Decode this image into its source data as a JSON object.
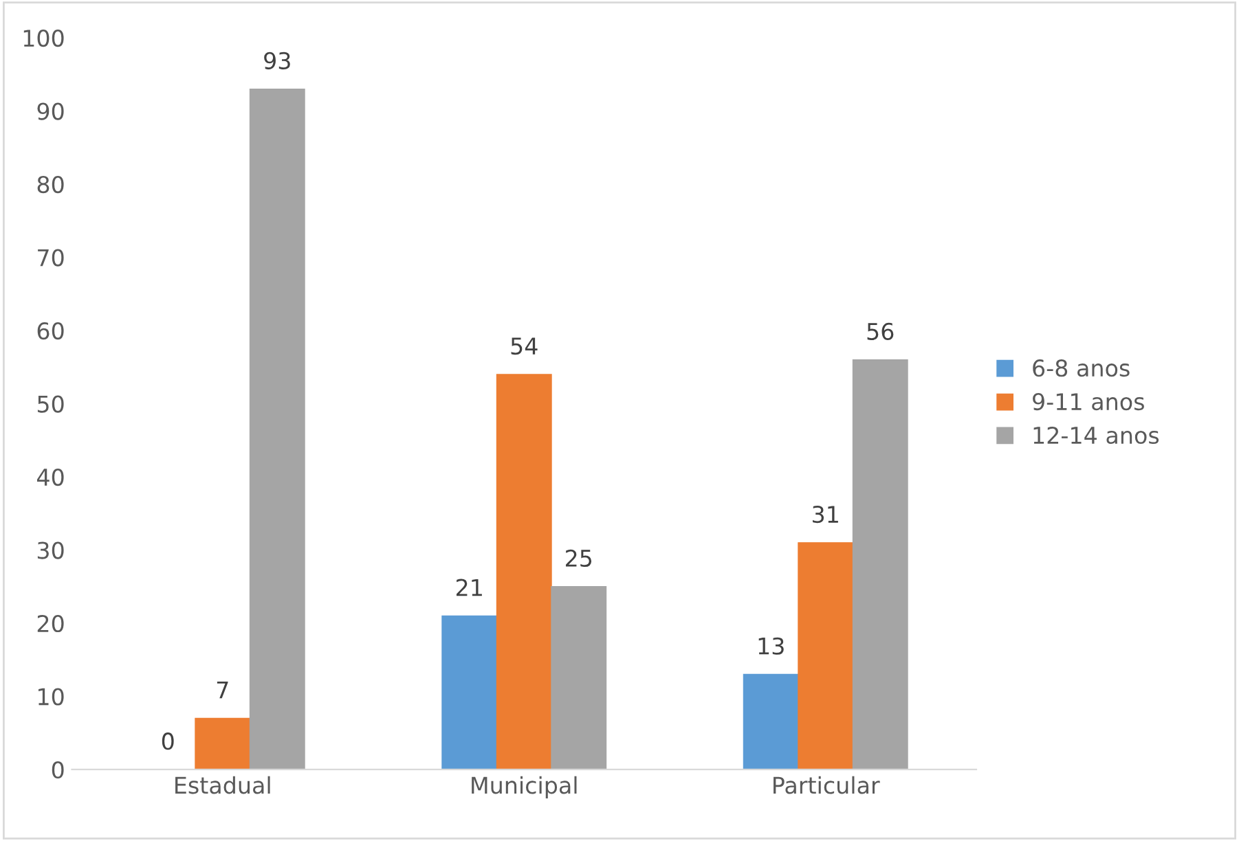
{
  "chart_data": {
    "type": "bar",
    "categories": [
      "Estadual",
      "Municipal",
      "Particular"
    ],
    "series": [
      {
        "name": "6-8 anos",
        "color": "#5b9bd5",
        "values": [
          0,
          21,
          13
        ]
      },
      {
        "name": "9-11 anos",
        "color": "#ed7d31",
        "values": [
          7,
          54,
          31
        ]
      },
      {
        "name": "12-14 anos",
        "color": "#a5a5a5",
        "values": [
          93,
          25,
          56
        ]
      }
    ],
    "ylim": [
      0,
      100
    ],
    "yticks": [
      0,
      10,
      20,
      30,
      40,
      50,
      60,
      70,
      80,
      90,
      100
    ],
    "data_labels": true,
    "legend": "right",
    "grid": false
  }
}
